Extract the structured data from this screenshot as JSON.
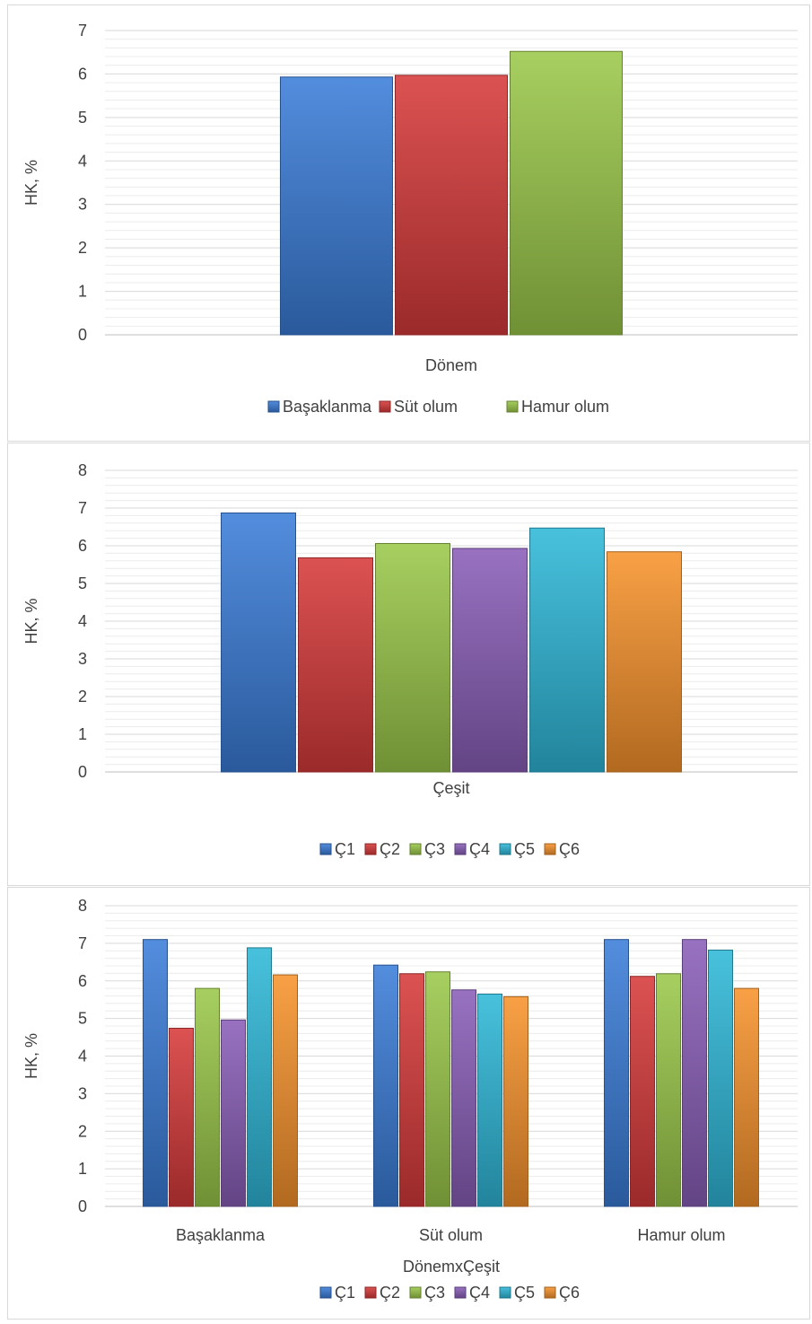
{
  "charts": [
    {
      "type": "bar",
      "ylabel": "HK, %",
      "xlabel": "Dönem",
      "ylim": [
        0,
        7
      ],
      "yticks": [
        0,
        1,
        2,
        3,
        4,
        5,
        6,
        7
      ],
      "categories": [
        ""
      ],
      "series": [
        {
          "name": "Başaklanma",
          "color": "#3b7dd8",
          "values": [
            5.93
          ]
        },
        {
          "name": "Süt olum",
          "color": "#d73a3a",
          "values": [
            5.97
          ]
        },
        {
          "name": "Hamur olum",
          "color": "#9bc84a",
          "values": [
            6.52
          ]
        }
      ]
    },
    {
      "type": "bar",
      "ylabel": "HK, %",
      "xlabel": "Çeşit",
      "ylim": [
        0,
        8
      ],
      "yticks": [
        0,
        1,
        2,
        3,
        4,
        5,
        6,
        7,
        8
      ],
      "categories": [
        ""
      ],
      "series": [
        {
          "name": "Ç1",
          "color": "#3b7dd8",
          "values": [
            6.87
          ]
        },
        {
          "name": "Ç2",
          "color": "#d73a3a",
          "values": [
            5.68
          ]
        },
        {
          "name": "Ç3",
          "color": "#9bc84a",
          "values": [
            6.06
          ]
        },
        {
          "name": "Ç4",
          "color": "#8a5fb8",
          "values": [
            5.93
          ]
        },
        {
          "name": "Ç5",
          "color": "#2fb8d8",
          "values": [
            6.47
          ]
        },
        {
          "name": "Ç6",
          "color": "#f7932d",
          "values": [
            5.84
          ]
        }
      ]
    },
    {
      "type": "bar",
      "ylabel": "HK, %",
      "xlabel": "DönemxÇeşit",
      "ylim": [
        0,
        8
      ],
      "yticks": [
        0,
        1,
        2,
        3,
        4,
        5,
        6,
        7,
        8
      ],
      "categories": [
        "Başaklanma",
        "Süt olum",
        "Hamur olum"
      ],
      "series": [
        {
          "name": "Ç1",
          "color": "#3b7dd8",
          "values": [
            7.1,
            6.42,
            7.1
          ]
        },
        {
          "name": "Ç2",
          "color": "#d73a3a",
          "values": [
            4.74,
            6.19,
            6.12
          ]
        },
        {
          "name": "Ç3",
          "color": "#9bc84a",
          "values": [
            5.8,
            6.24,
            6.19
          ]
        },
        {
          "name": "Ç4",
          "color": "#8a5fb8",
          "values": [
            4.96,
            5.76,
            7.1
          ]
        },
        {
          "name": "Ç5",
          "color": "#2fb8d8",
          "values": [
            6.88,
            5.65,
            6.82
          ]
        },
        {
          "name": "Ç6",
          "color": "#f7932d",
          "values": [
            6.16,
            5.58,
            5.8
          ]
        }
      ]
    }
  ]
}
